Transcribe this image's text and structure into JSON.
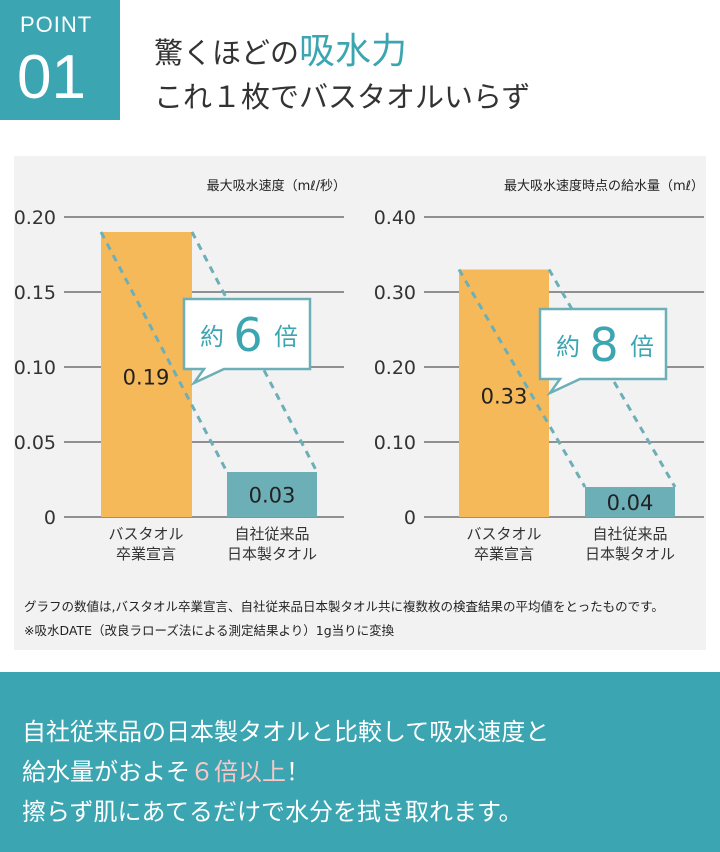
{
  "badge": {
    "label": "POINT",
    "number": "01"
  },
  "headline": {
    "prefix": "驚くほどの",
    "accent": "吸水力",
    "line2": "これ１枚でバスタオルいらず"
  },
  "chart_data": [
    {
      "type": "bar",
      "title": "最大吸水速度（mℓ/秒）",
      "categories": [
        [
          "バスタオル",
          "卒業宣言"
        ],
        [
          "自社従来品",
          "日本製タオル"
        ]
      ],
      "values": [
        0.19,
        0.03
      ],
      "value_labels": [
        "0.19",
        "0.03"
      ],
      "yticks": [
        "0",
        "0.05",
        "0.10",
        "0.15",
        "0.20"
      ],
      "ylim": [
        0,
        0.2
      ],
      "callout": {
        "prefix": "約",
        "number": "6",
        "suffix": "倍"
      },
      "colors": [
        "#f6b95a",
        "#6cafb7"
      ]
    },
    {
      "type": "bar",
      "title": "最大吸水速度時点の給水量（mℓ）",
      "categories": [
        [
          "バスタオル",
          "卒業宣言"
        ],
        [
          "自社従来品",
          "日本製タオル"
        ]
      ],
      "values": [
        0.33,
        0.04
      ],
      "value_labels": [
        "0.33",
        "0.04"
      ],
      "yticks": [
        "0",
        "0.10",
        "0.20",
        "0.30",
        "0.40"
      ],
      "ylim": [
        0,
        0.4
      ],
      "callout": {
        "prefix": "約",
        "number": "8",
        "suffix": "倍"
      },
      "colors": [
        "#f6b95a",
        "#6cafb7"
      ]
    }
  ],
  "notes": [
    "グラフの数値は,バスタオル卒業宣言、自社従来品日本製タオル共に複数枚の検査結果の平均値をとったものです。",
    "※吸水DATE（改良ラローズ法による測定結果より）1g当りに変換"
  ],
  "banner": {
    "line1": "自社従来品の日本製タオルと比較して吸水速度と",
    "line2_prefix": "給水量がおよそ",
    "line2_highlight": "６倍以上",
    "line2_suffix": "！",
    "line3": "擦らず肌にあてるだけで水分を拭き取れます。"
  },
  "colors": {
    "accent": "#3ba5b2",
    "bar_primary": "#f6b95a",
    "bar_secondary": "#6cafb7",
    "panel": "#f2f2f2",
    "highlight": "#f7c8c8"
  }
}
